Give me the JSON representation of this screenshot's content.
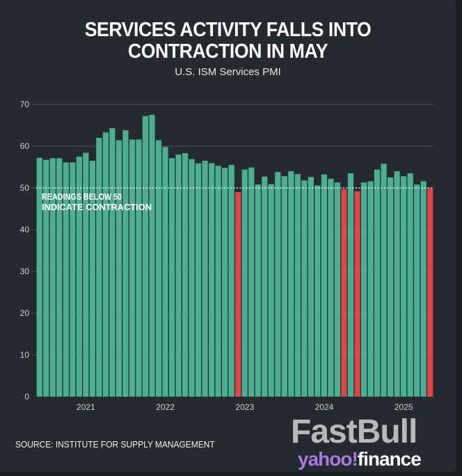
{
  "title_line1": "SERVICES ACTIVITY FALLS INTO",
  "title_line2": "CONTRACTION IN MAY",
  "subtitle": "U.S. ISM Services PMI",
  "source": "SOURCE: INSTITUTE FOR SUPPLY MANAGEMENT",
  "logo": {
    "watermark": "FastBull",
    "brand_part1": "yahoo!",
    "brand_part2": "finance"
  },
  "chart_data": {
    "type": "bar",
    "title": "SERVICES ACTIVITY FALLS INTO CONTRACTION IN MAY",
    "subtitle": "U.S. ISM Services PMI",
    "x_start": "2020-06",
    "x_end": "2025-05",
    "frequency": "monthly",
    "values": [
      57.2,
      56.7,
      57.1,
      57.1,
      56.1,
      56.1,
      57.5,
      58.4,
      56.5,
      62.0,
      63.3,
      64.3,
      61.4,
      63.8,
      61.6,
      61.6,
      67.2,
      67.5,
      61.4,
      59.8,
      57.1,
      58.0,
      58.3,
      56.9,
      55.9,
      56.5,
      55.9,
      55.3,
      54.8,
      55.5,
      49.0,
      54.4,
      54.9,
      50.8,
      52.7,
      50.9,
      53.8,
      52.8,
      54.0,
      53.3,
      51.8,
      52.6,
      50.6,
      53.2,
      52.2,
      51.3,
      49.7,
      53.5,
      49.2,
      51.3,
      51.6,
      54.4,
      55.8,
      52.5,
      54.0,
      52.8,
      53.5,
      50.8,
      51.6,
      49.9
    ],
    "ylim": [
      0,
      70
    ],
    "yticks": [
      0,
      10,
      20,
      30,
      40,
      50,
      60,
      70
    ],
    "xticks": [
      {
        "label": "2021",
        "month": "2021-01"
      },
      {
        "label": "2022",
        "month": "2022-01"
      },
      {
        "label": "2023",
        "month": "2023-01"
      },
      {
        "label": "2024",
        "month": "2024-01"
      },
      {
        "label": "2025",
        "month": "2025-01"
      }
    ],
    "grid": true,
    "threshold": 50,
    "annotation": [
      "READINGS BELOW 50",
      "INDICATE CONTRACTION"
    ],
    "colors": {
      "expansion": "#4caf94",
      "contraction": "#e04646",
      "background": "#252a31",
      "grid": "#4a4f57"
    }
  }
}
